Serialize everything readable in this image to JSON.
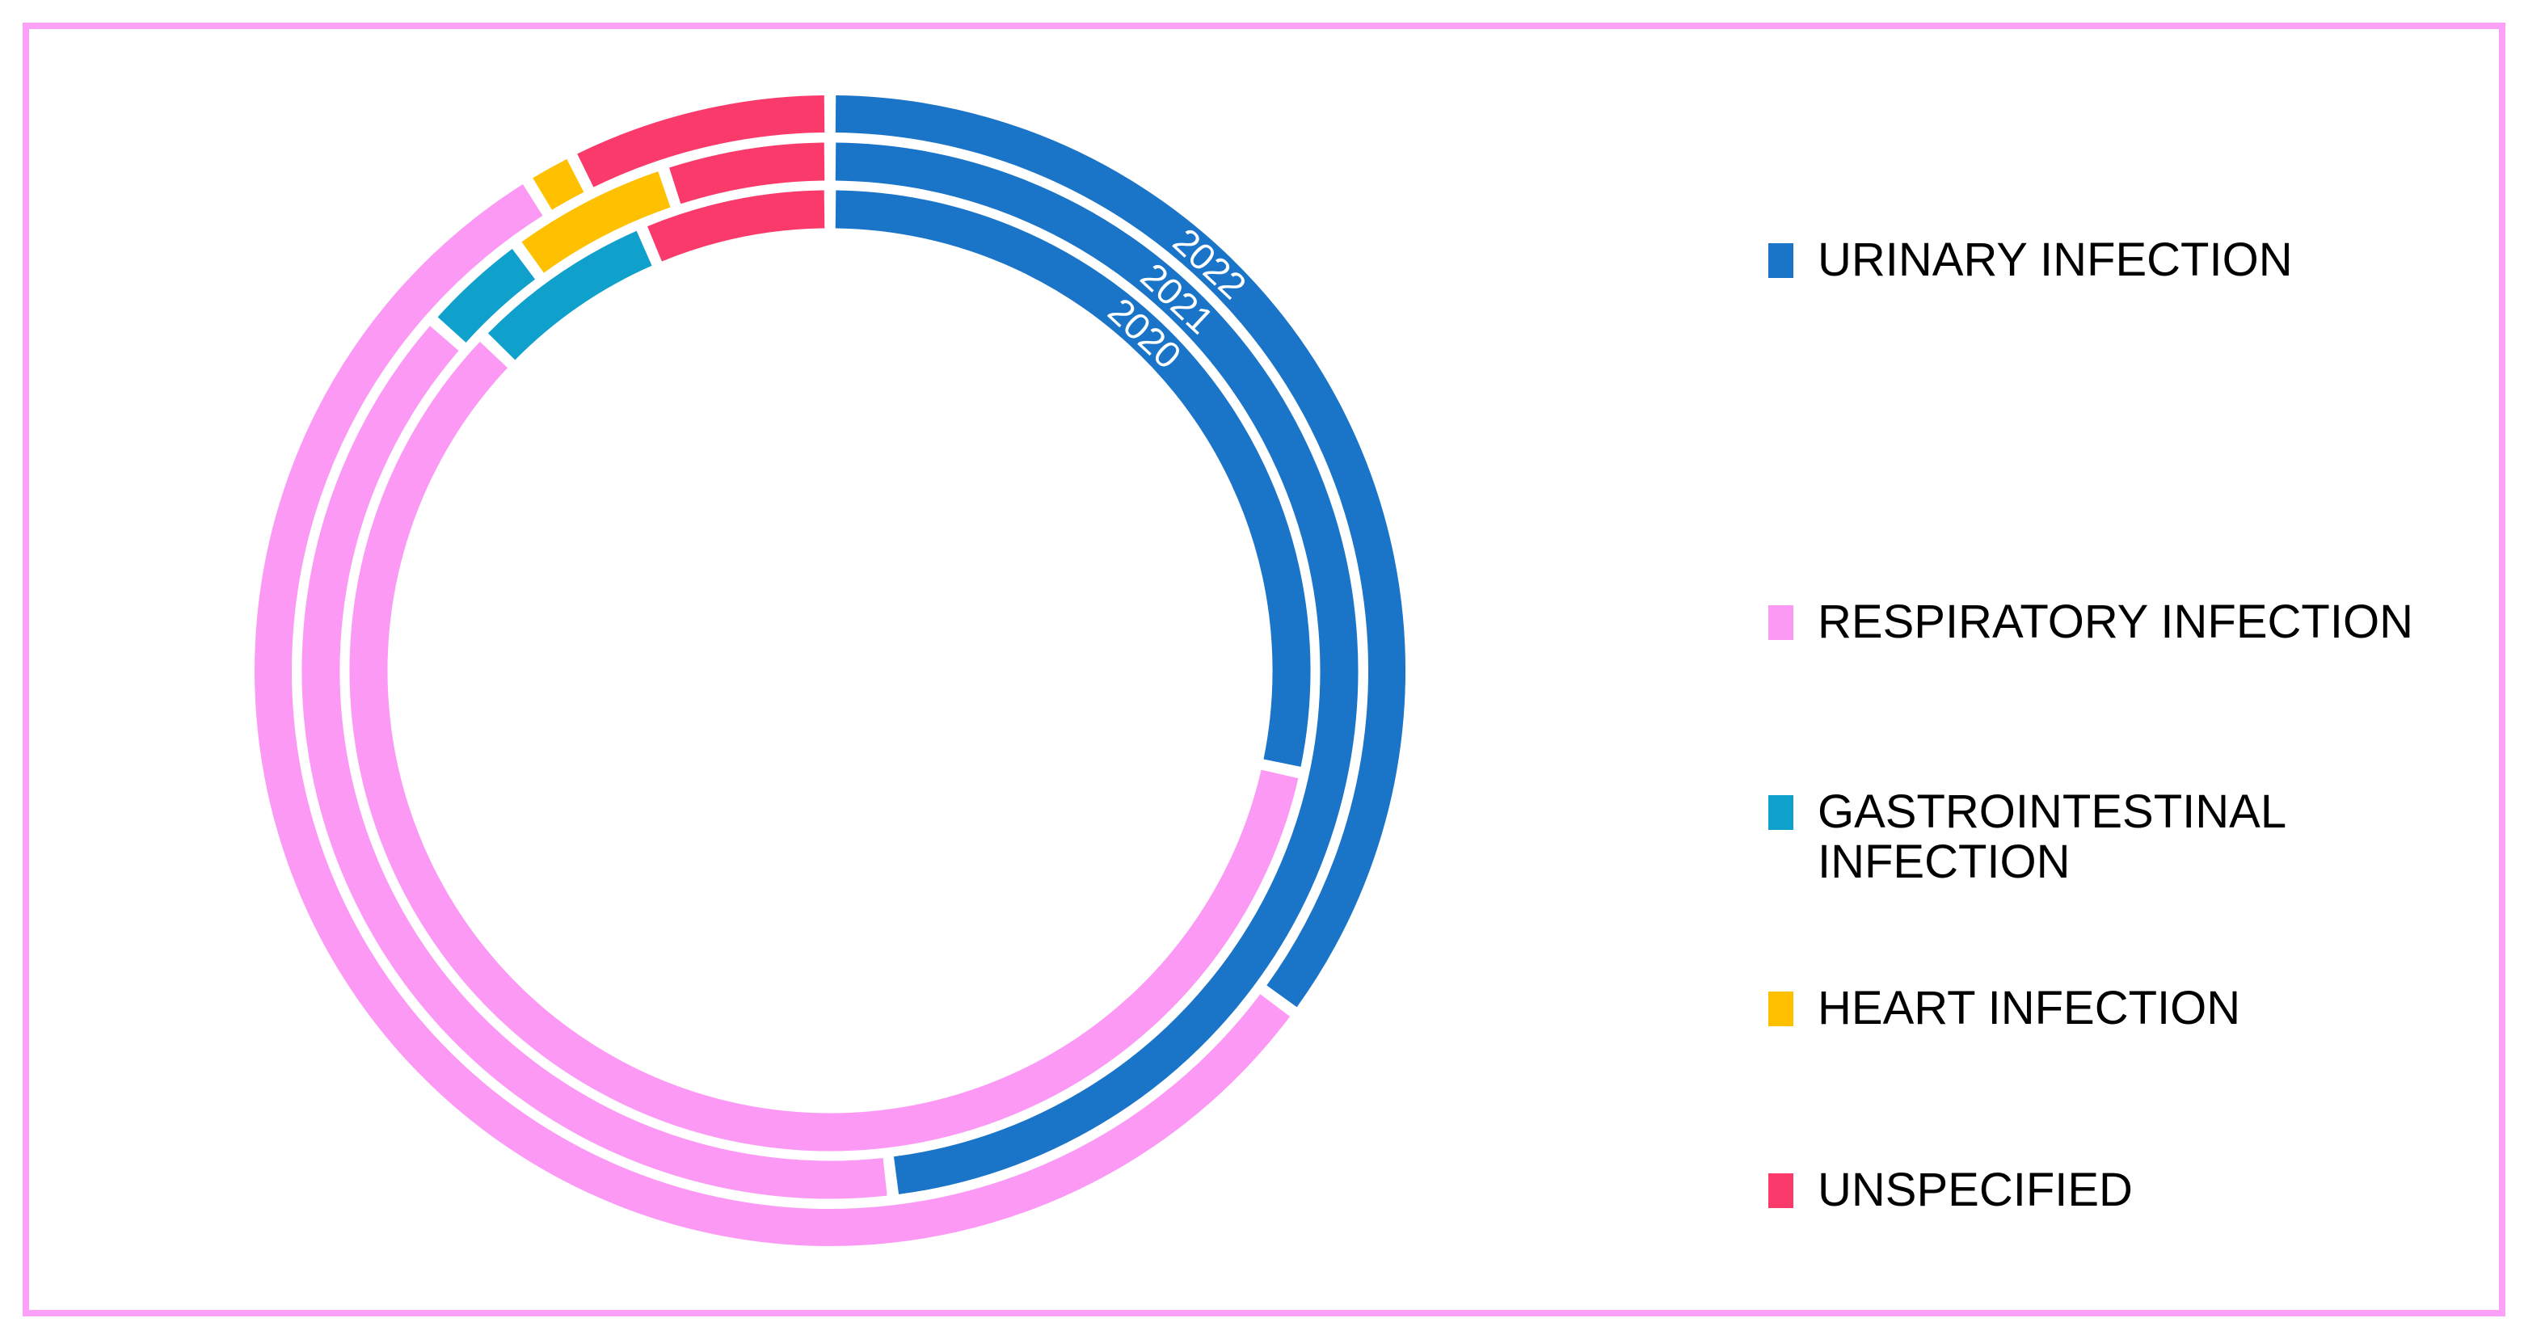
{
  "figure": {
    "background_color": "#FFFFFF",
    "frame_border_color": "#FCA0F8"
  },
  "chart_data": {
    "type": "pie",
    "variant": "concentric-donut-rings",
    "direction": "clockwise",
    "start_angle_deg": 0,
    "legend_position": "right",
    "grid": false,
    "categories": [
      {
        "label": "URINARY INFECTION",
        "color": "#1A74C8"
      },
      {
        "label": "RESPIRATORY INFECTION",
        "color": "#FC99F5"
      },
      {
        "label": "GASTROINTESTINAL INFECTION",
        "color": "#0FA0CB"
      },
      {
        "label": "HEART INFECTION",
        "color": "#FFC000"
      },
      {
        "label": "UNSPECIFIED",
        "color": "#FB3A6C"
      }
    ],
    "rings_outer_to_inner": [
      {
        "year": "2022",
        "values_percent": [
          35.1,
          56.1,
          0,
          1.4,
          7.4
        ]
      },
      {
        "year": "2021",
        "values_percent": [
          48.1,
          38.4,
          3.4,
          5.0,
          5.1
        ]
      },
      {
        "year": "2020",
        "values_percent": [
          28.4,
          58.8,
          6.4,
          0,
          6.4
        ]
      }
    ]
  }
}
